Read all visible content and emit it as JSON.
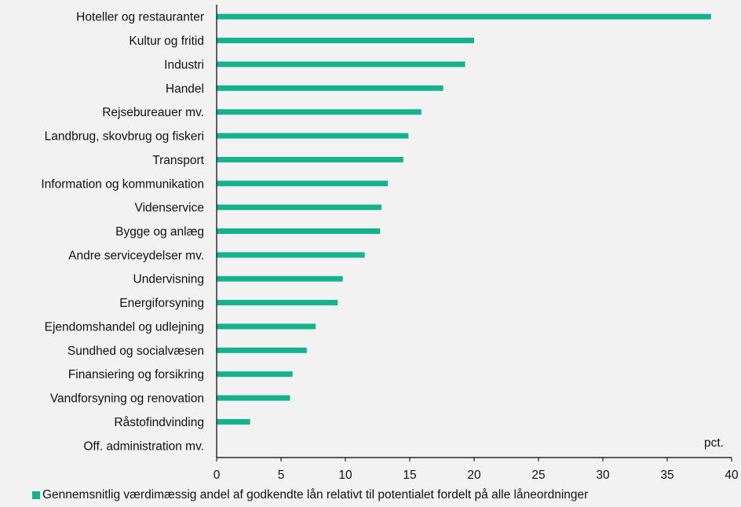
{
  "chart_data": {
    "type": "bar",
    "orientation": "horizontal",
    "categories": [
      "Hoteller og restauranter",
      "Kultur og fritid",
      "Industri",
      "Handel",
      "Rejsebureauer mv.",
      "Landbrug, skovbrug og fiskeri",
      "Transport",
      "Information og kommunikation",
      "Videnservice",
      "Bygge og anlæg",
      "Andre serviceydelser mv.",
      "Undervisning",
      "Energiforsyning",
      "Ejendomshandel og udlejning",
      "Sundhed og socialvæsen",
      "Finansiering og forsikring",
      "Vandforsyning og renovation",
      "Råstofindvinding",
      "Off. administration mv."
    ],
    "series": [
      {
        "name": "Gennemsnitlig værdimæssig andel af godkendte lån relativt til potentialet fordelt på alle låneordninger",
        "values": [
          38.4,
          20.0,
          19.3,
          17.6,
          15.9,
          14.9,
          14.5,
          13.3,
          12.8,
          12.7,
          11.5,
          9.8,
          9.4,
          7.7,
          7.0,
          5.9,
          5.7,
          2.6,
          0.0
        ]
      }
    ],
    "xlim": [
      0,
      40
    ],
    "xticks": [
      "0",
      "5",
      "10",
      "15",
      "20",
      "25",
      "30",
      "35",
      "40"
    ],
    "unit_label": "pct.",
    "colors": {
      "bar": "#14b38e",
      "axis": "#000000",
      "text": "#111111",
      "background": "#f2f2f2"
    },
    "grid": false,
    "legend_position": "bottom"
  }
}
